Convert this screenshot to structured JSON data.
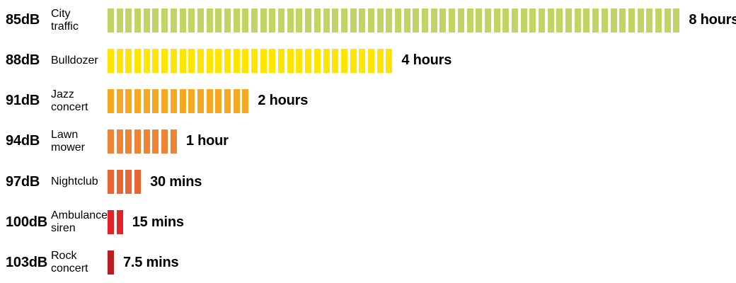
{
  "chart_data": {
    "type": "bar",
    "orientation": "horizontal",
    "description_visible_text_only": true,
    "legend": "none",
    "grid": false,
    "rows": [
      {
        "db": "85dB",
        "source": "City\ntraffic",
        "time": "8 hours",
        "segments": 64,
        "color": "#C2D464"
      },
      {
        "db": "88dB",
        "source": "Bulldozer",
        "time": "4 hours",
        "segments": 32,
        "color": "#FFE500"
      },
      {
        "db": "91dB",
        "source": "Jazz\nconcert",
        "time": "2 hours",
        "segments": 16,
        "color": "#F7A823"
      },
      {
        "db": "94dB",
        "source": "Lawn\nmower",
        "time": "1 hour",
        "segments": 8,
        "color": "#EF8434"
      },
      {
        "db": "97dB",
        "source": "Nightclub",
        "time": "30 mins",
        "segments": 4,
        "color": "#EA6533"
      },
      {
        "db": "100dB",
        "source": "Ambulance\nsiren",
        "time": "15 mins",
        "segments": 2,
        "color": "#E42329"
      },
      {
        "db": "103dB",
        "source": "Rock\nconcert",
        "time": "7.5 mins",
        "segments": 1,
        "color": "#BA1E24"
      }
    ]
  }
}
